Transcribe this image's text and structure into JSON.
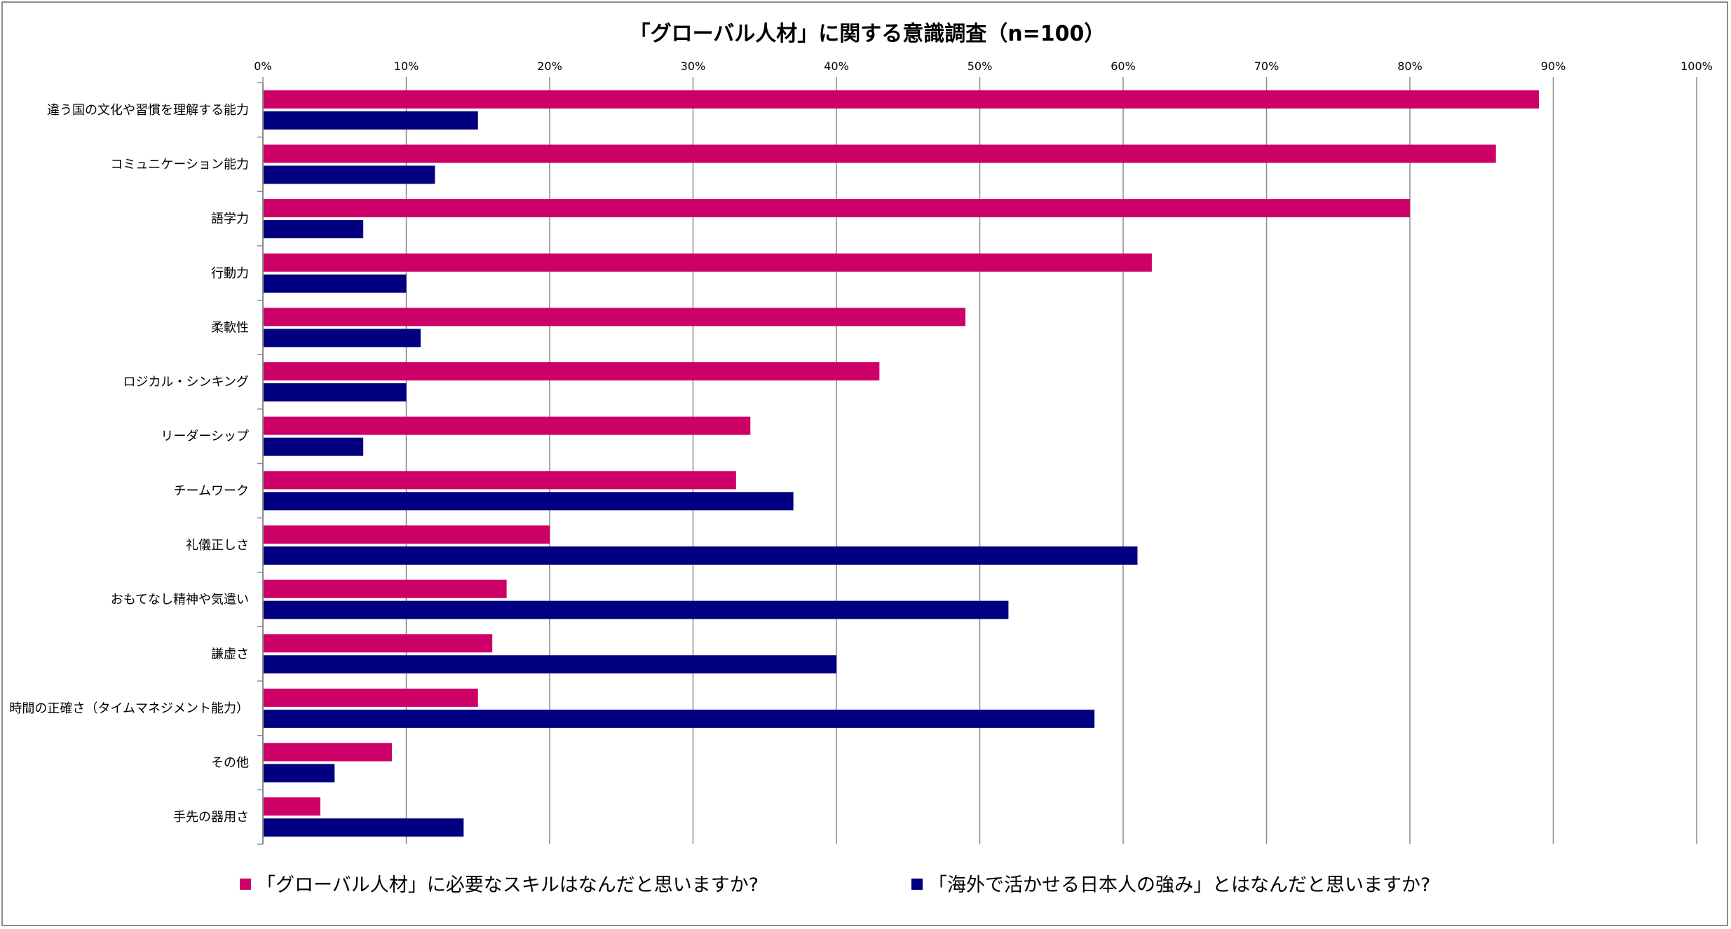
{
  "chart_data": {
    "type": "bar",
    "orientation": "horizontal",
    "title": "「グローバル人材」に関する意識調査（n=100）",
    "x_ticks": [
      "0%",
      "10%",
      "20%",
      "30%",
      "40%",
      "50%",
      "60%",
      "70%",
      "80%",
      "90%",
      "100%"
    ],
    "xlim": [
      0,
      100
    ],
    "grid": true,
    "legend_position": "bottom",
    "categories": [
      "違う国の文化や習慣を理解する能力",
      "コミュニケーション能力",
      "語学力",
      "行動力",
      "柔軟性",
      "ロジカル・シンキング",
      "リーダーシップ",
      "チームワーク",
      "礼儀正しさ",
      "おもてなし精神や気遣い",
      "謙虚さ",
      "時間の正確さ（タイムマネジメント能力）",
      "その他",
      "手先の器用さ"
    ],
    "series": [
      {
        "name": "「グローバル人材」に必要なスキルはなんだと思いますか?",
        "color": "#CC0066",
        "values": [
          89,
          86,
          80,
          62,
          49,
          43,
          34,
          33,
          20,
          17,
          16,
          15,
          9,
          4
        ]
      },
      {
        "name": "「海外で活かせる日本人の強み」とはなんだと思いますか?",
        "color": "#000080",
        "values": [
          15,
          12,
          7,
          10,
          11,
          10,
          7,
          37,
          61,
          52,
          40,
          58,
          5,
          14
        ]
      }
    ]
  }
}
